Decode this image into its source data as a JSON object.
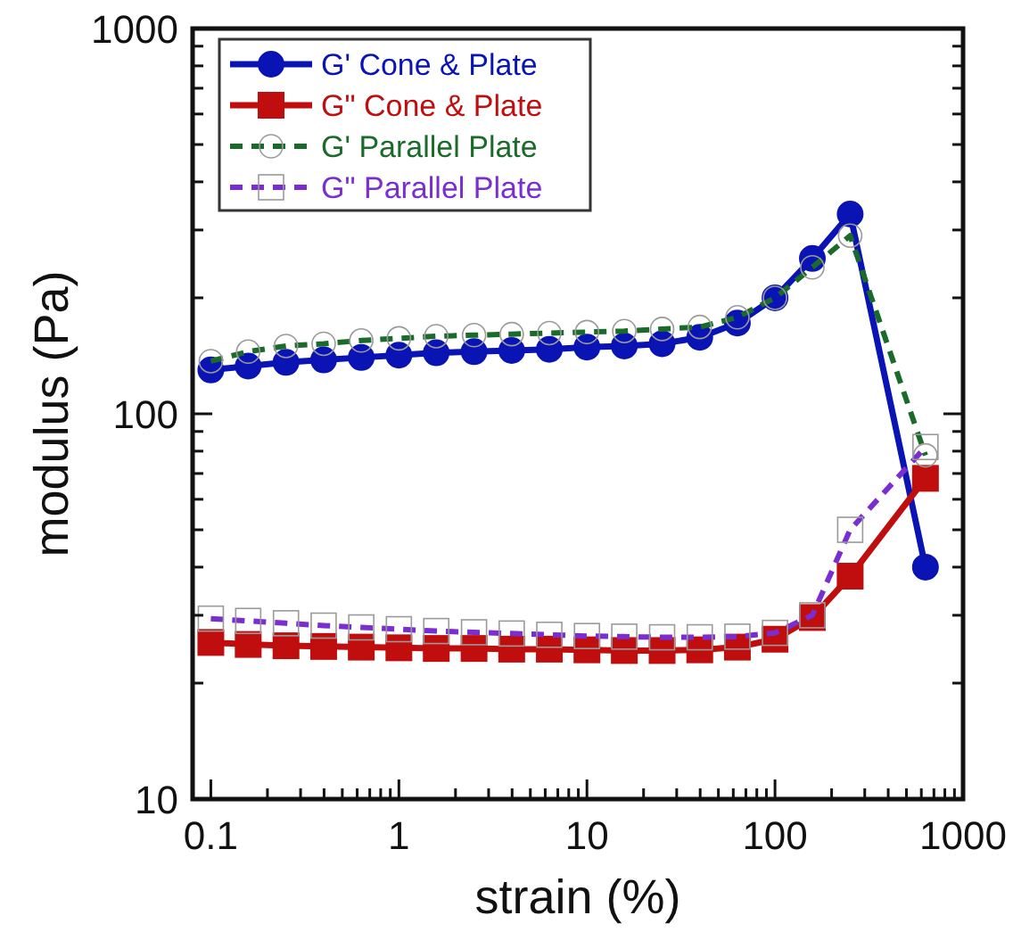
{
  "chart_data": {
    "type": "line",
    "xlabel": "strain (%)",
    "ylabel": "modulus (Pa)",
    "log": "xy",
    "xlim": [
      0.08,
      1000
    ],
    "ylim": [
      10,
      1000
    ],
    "xticks": [
      0.1,
      {
        "value": 0.2,
        "label": null
      },
      {
        "value": 0.3,
        "label": null
      },
      {
        "value": 0.4,
        "label": null
      },
      {
        "value": 0.5,
        "label": null
      },
      {
        "value": 0.6,
        "label": null
      },
      {
        "value": 0.7,
        "label": null
      },
      {
        "value": 0.8,
        "label": null
      },
      {
        "value": 0.9,
        "label": null
      },
      1,
      {
        "value": 2,
        "label": null
      },
      {
        "value": 3,
        "label": null
      },
      {
        "value": 4,
        "label": null
      },
      {
        "value": 5,
        "label": null
      },
      {
        "value": 6,
        "label": null
      },
      {
        "value": 7,
        "label": null
      },
      {
        "value": 8,
        "label": null
      },
      {
        "value": 9,
        "label": null
      },
      10,
      {
        "value": 20,
        "label": null
      },
      {
        "value": 30,
        "label": null
      },
      {
        "value": 40,
        "label": null
      },
      {
        "value": 50,
        "label": null
      },
      {
        "value": 60,
        "label": null
      },
      {
        "value": 70,
        "label": null
      },
      {
        "value": 80,
        "label": null
      },
      {
        "value": 90,
        "label": null
      },
      100,
      {
        "value": 200,
        "label": null
      },
      {
        "value": 300,
        "label": null
      },
      {
        "value": 400,
        "label": null
      },
      {
        "value": 500,
        "label": null
      },
      {
        "value": 600,
        "label": null
      },
      {
        "value": 700,
        "label": null
      },
      {
        "value": 800,
        "label": null
      },
      {
        "value": 900,
        "label": null
      },
      1000
    ],
    "yticks": [
      10,
      {
        "value": 20,
        "label": null
      },
      {
        "value": 30,
        "label": null
      },
      {
        "value": 40,
        "label": null
      },
      {
        "value": 50,
        "label": null
      },
      {
        "value": 60,
        "label": null
      },
      {
        "value": 70,
        "label": null
      },
      {
        "value": 80,
        "label": null
      },
      {
        "value": 90,
        "label": null
      },
      100,
      {
        "value": 200,
        "label": null
      },
      {
        "value": 300,
        "label": null
      },
      {
        "value": 400,
        "label": null
      },
      {
        "value": 500,
        "label": null
      },
      {
        "value": 600,
        "label": null
      },
      {
        "value": 700,
        "label": null
      },
      {
        "value": 800,
        "label": null
      },
      {
        "value": 900,
        "label": null
      },
      1000
    ],
    "grid": false,
    "legend": "top left",
    "x": [
      0.1,
      0.158,
      0.251,
      0.398,
      0.631,
      1,
      1.58,
      2.51,
      3.98,
      6.31,
      10,
      15.8,
      25.1,
      39.8,
      63.1,
      100,
      158,
      251,
      631
    ],
    "series": [
      {
        "name": "G' Cone & Plate",
        "color": "#0a14b4",
        "marker": "circle",
        "line_style": "solid",
        "values": [
          130,
          133,
          136,
          138,
          140,
          142,
          144,
          145,
          146,
          147,
          149,
          150,
          152,
          158,
          172,
          200,
          253,
          330,
          40
        ]
      },
      {
        "name": "G\" Cone & Plate",
        "color": "#c00d0d",
        "marker": "square",
        "line_style": "solid",
        "values": [
          25.5,
          25.2,
          25,
          24.9,
          24.8,
          24.7,
          24.6,
          24.6,
          24.5,
          24.5,
          24.4,
          24.3,
          24.3,
          24.4,
          24.8,
          26,
          29.6,
          37.9,
          68
        ]
      },
      {
        "name": "G' Parallel Plate",
        "color": "#1a6b2a",
        "marker": "circle",
        "line_style": "dashed",
        "values": [
          137,
          145,
          150,
          152,
          155,
          157,
          159,
          160,
          161,
          162,
          163,
          164,
          166,
          168,
          178,
          200,
          240,
          290,
          78
        ]
      },
      {
        "name": "G\" Parallel Plate",
        "color": "#7a2ed0",
        "marker": "square",
        "line_style": "dashed",
        "values": [
          29.4,
          29,
          28.6,
          28.2,
          27.9,
          27.6,
          27.3,
          27.1,
          26.9,
          26.7,
          26.5,
          26.4,
          26.3,
          26.3,
          26.4,
          27,
          30,
          50,
          82
        ]
      }
    ]
  }
}
